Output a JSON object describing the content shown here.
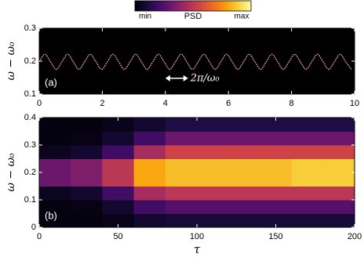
{
  "chart_data": [
    {
      "type": "line",
      "panel_label": "(a)",
      "ylabel": "ω − ω₀",
      "x": [
        0,
        0.18,
        0.36,
        0.54,
        0.72,
        0.9,
        1.08,
        1.26,
        1.44,
        1.62,
        1.8,
        1.98,
        2.16,
        2.34,
        2.52,
        2.7,
        2.88,
        3.06,
        3.24,
        3.42,
        3.6,
        3.78,
        3.96,
        4.14,
        4.32,
        4.5,
        4.68,
        4.86,
        5.04,
        5.22,
        5.4,
        5.58,
        5.76,
        5.94,
        6.12,
        6.3,
        6.48,
        6.66,
        6.84,
        7.02,
        7.2,
        7.38,
        7.56,
        7.74,
        7.92,
        8.1,
        8.28,
        8.46,
        8.64,
        8.82,
        9.0,
        9.18,
        9.36,
        9.54,
        9.72,
        9.9
      ],
      "series": [
        {
          "color": "#e8a0a0",
          "values": [
            0.198,
            0.221,
            0.198,
            0.175,
            0.198,
            0.221,
            0.198,
            0.175,
            0.198,
            0.221,
            0.198,
            0.175,
            0.198,
            0.221,
            0.198,
            0.175,
            0.198,
            0.221,
            0.198,
            0.175,
            0.198,
            0.221,
            0.198,
            0.175,
            0.198,
            0.221,
            0.198,
            0.175,
            0.198,
            0.221,
            0.198,
            0.175,
            0.198,
            0.221,
            0.198,
            0.175,
            0.198,
            0.221,
            0.198,
            0.175,
            0.198,
            0.221,
            0.198,
            0.175,
            0.198,
            0.221,
            0.198,
            0.175,
            0.198,
            0.221,
            0.198,
            0.175,
            0.198,
            0.221,
            0.198,
            0.175
          ]
        }
      ],
      "xlim": [
        0,
        10
      ],
      "xticks": [
        0,
        2,
        4,
        6,
        8,
        10
      ],
      "ylim": [
        0.1,
        0.3
      ],
      "yticks": [
        0.1,
        0.2,
        0.3
      ],
      "annotation": {
        "text": "2π/ω₀",
        "x": [
          4.0,
          4.72
        ],
        "y": 0.148
      }
    },
    {
      "type": "heatmap",
      "panel_label": "(b)",
      "ylabel": "ω − ω₀",
      "xlabel": "τ",
      "x_edges": [
        0,
        20,
        40,
        60,
        80,
        100,
        120,
        140,
        160,
        180,
        200
      ],
      "y_edges": [
        0,
        0.05,
        0.1,
        0.15,
        0.2,
        0.25,
        0.3,
        0.35,
        0.4
      ],
      "z": [
        [
          0.02,
          0.02,
          0.04,
          0.08,
          0.1,
          0.1,
          0.1,
          0.1,
          0.1,
          0.1
        ],
        [
          0.02,
          0.03,
          0.08,
          0.2,
          0.25,
          0.25,
          0.25,
          0.25,
          0.25,
          0.25
        ],
        [
          0.05,
          0.08,
          0.2,
          0.45,
          0.5,
          0.5,
          0.5,
          0.5,
          0.5,
          0.5
        ],
        [
          0.3,
          0.35,
          0.5,
          0.8,
          0.85,
          0.85,
          0.85,
          0.85,
          0.88,
          0.88
        ],
        [
          0.3,
          0.35,
          0.5,
          0.8,
          0.85,
          0.85,
          0.85,
          0.85,
          0.88,
          0.88
        ],
        [
          0.05,
          0.08,
          0.2,
          0.45,
          0.55,
          0.55,
          0.55,
          0.55,
          0.55,
          0.55
        ],
        [
          0.02,
          0.03,
          0.08,
          0.2,
          0.3,
          0.3,
          0.3,
          0.3,
          0.3,
          0.3
        ],
        [
          0.02,
          0.02,
          0.04,
          0.08,
          0.12,
          0.12,
          0.12,
          0.12,
          0.12,
          0.12
        ]
      ],
      "xlim": [
        0,
        200
      ],
      "xticks": [
        0,
        50,
        100,
        150,
        200
      ],
      "ylim": [
        0,
        0.4
      ],
      "yticks": [
        0,
        0.1,
        0.2,
        0.3,
        0.4
      ],
      "colorbar": {
        "label": "PSD",
        "min_label": "min",
        "max_label": "max",
        "colormap": [
          "#000004",
          "#1b0c41",
          "#4a0c6b",
          "#781c6d",
          "#a52c60",
          "#cf4446",
          "#ed6925",
          "#fb9b06",
          "#f7d13d",
          "#fcffa4"
        ]
      }
    }
  ]
}
